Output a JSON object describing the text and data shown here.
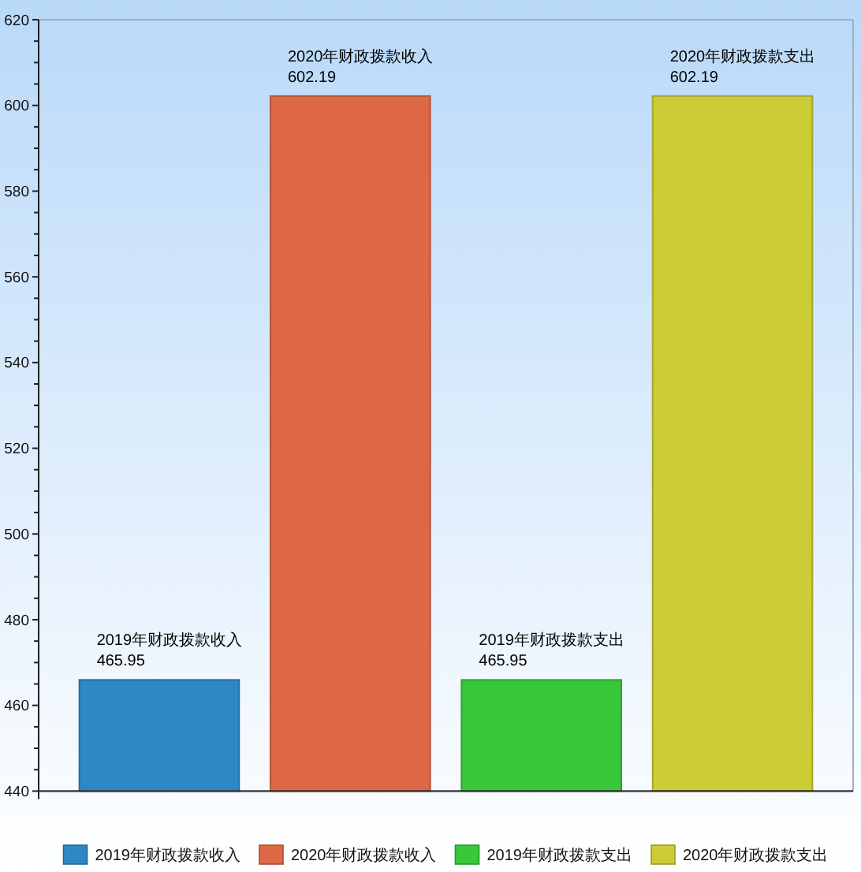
{
  "chart_data": {
    "type": "bar",
    "categories": [
      null
    ],
    "series": [
      {
        "name": "2019年财政拨款收入",
        "color": "#2e88c6",
        "values": [
          465.95
        ]
      },
      {
        "name": "2020年财政拨款收入",
        "color": "#de6845",
        "values": [
          602.19
        ]
      },
      {
        "name": "2019年财政拨款支出",
        "color": "#38c83a",
        "values": [
          465.95
        ]
      },
      {
        "name": "2020年财政拨款支出",
        "color": "#cccc36",
        "values": [
          602.19
        ]
      }
    ],
    "ylim": [
      440,
      620
    ],
    "yticks": [
      440,
      {
        "value": 445,
        "label": null
      },
      {
        "value": 450,
        "label": null
      },
      {
        "value": 455,
        "label": null
      },
      460,
      {
        "value": 465,
        "label": null
      },
      {
        "value": 470,
        "label": null
      },
      {
        "value": 475,
        "label": null
      },
      480,
      {
        "value": 485,
        "label": null
      },
      {
        "value": 490,
        "label": null
      },
      {
        "value": 495,
        "label": null
      },
      500,
      {
        "value": 505,
        "label": null
      },
      {
        "value": 510,
        "label": null
      },
      {
        "value": 515,
        "label": null
      },
      520,
      {
        "value": 525,
        "label": null
      },
      {
        "value": 530,
        "label": null
      },
      {
        "value": 535,
        "label": null
      },
      540,
      {
        "value": 545,
        "label": null
      },
      {
        "value": 550,
        "label": null
      },
      {
        "value": 555,
        "label": null
      },
      560,
      {
        "value": 565,
        "label": null
      },
      {
        "value": 570,
        "label": null
      },
      {
        "value": 575,
        "label": null
      },
      580,
      {
        "value": 585,
        "label": null
      },
      {
        "value": 590,
        "label": null
      },
      {
        "value": 595,
        "label": null
      },
      600,
      {
        "value": 605,
        "label": null
      },
      {
        "value": 610,
        "label": null
      },
      {
        "value": 615,
        "label": null
      },
      620
    ],
    "data_labels": true,
    "legend": "bottom"
  }
}
